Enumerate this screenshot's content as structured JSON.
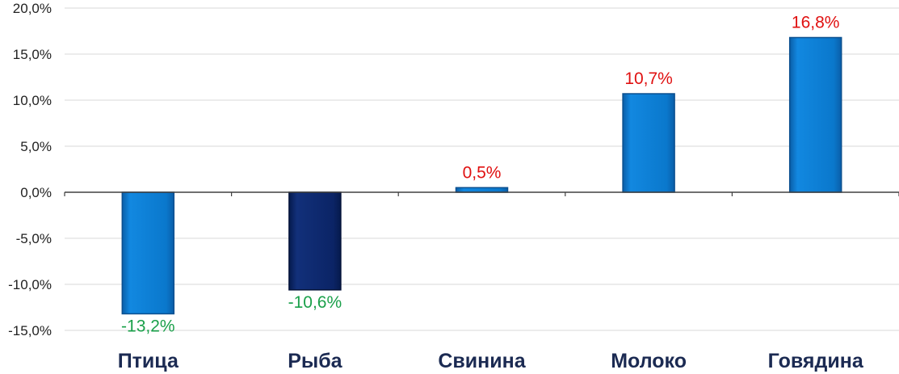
{
  "chart_data": {
    "type": "bar",
    "title": "",
    "xlabel": "",
    "ylabel": "",
    "categories": [
      "Птица",
      "Рыба",
      "Свинина",
      "Молоко",
      "Говядина"
    ],
    "values": [
      -13.2,
      -10.6,
      0.5,
      10.7,
      16.8
    ],
    "value_labels": [
      "-13,2%",
      "-10,6%",
      "0,5%",
      "10,7%",
      "16,8%"
    ],
    "ylim": [
      -15,
      20
    ],
    "yticks": [
      20,
      15,
      10,
      5,
      0,
      -5,
      -10,
      -15
    ],
    "ytick_labels": [
      "20,0%",
      "15,0%",
      "10,0%",
      "5,0%",
      "0,0%",
      "-5,0%",
      "-10,0%",
      "-15,0%"
    ],
    "grid": true,
    "legend": "none",
    "bar_colors": [
      "#0a78cc",
      "#0b2466",
      "#0a78cc",
      "#0a78cc",
      "#0a78cc"
    ],
    "positive_label_color": "#e01010",
    "negative_label_color": "#1aa04a",
    "gridline_color": "#d9d9d9",
    "axis_color": "#404040"
  }
}
